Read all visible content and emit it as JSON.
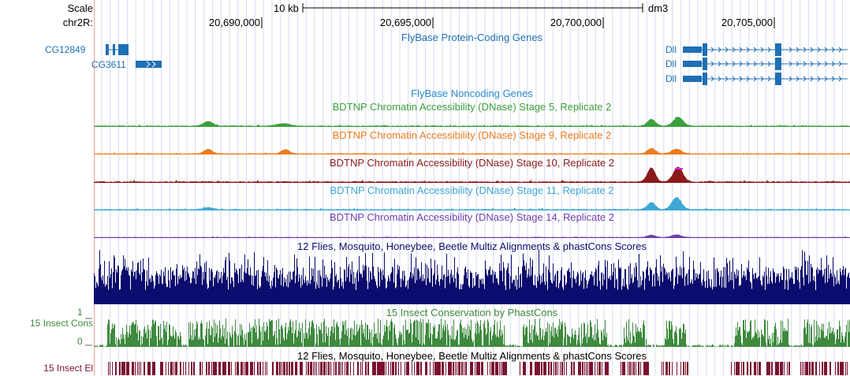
{
  "header": {
    "scale_label": "Scale",
    "scale_bar_label": "10 kb",
    "assembly": "dm3",
    "chrom_label": "chr2R:",
    "ticks": [
      "20,690,000",
      "20,695,000",
      "20,700,000",
      "20,705,000"
    ]
  },
  "tracks": {
    "protein_coding": {
      "title": "FlyBase Protein-Coding Genes",
      "color": "#1f6fb5",
      "genes": [
        {
          "name": "CG12849",
          "strand": "+"
        },
        {
          "name": "CG3611",
          "strand": "+"
        },
        {
          "name": "Dll",
          "strand": "+"
        },
        {
          "name": "Dll",
          "strand": "+"
        },
        {
          "name": "Dll",
          "strand": "+"
        }
      ]
    },
    "noncoding": {
      "title": "FlyBase Noncoding Genes",
      "color": "#2a8ad1"
    },
    "dnase": [
      {
        "title": "BDTNP Chromatin Accessibility (DNase) Stage 5, Replicate 2",
        "color": "#3ca03c"
      },
      {
        "title": "BDTNP Chromatin Accessibility (DNase) Stage 9, Replicate 2",
        "color": "#ee7b1e"
      },
      {
        "title": "BDTNP Chromatin Accessibility (DNase) Stage 10, Replicate 2",
        "color": "#8b1a1a"
      },
      {
        "title": "BDTNP Chromatin Accessibility (DNase) Stage 11, Replicate 2",
        "color": "#3fa7d6"
      },
      {
        "title": "BDTNP Chromatin Accessibility (DNase) Stage 14, Replicate 2",
        "color": "#6f3fad"
      }
    ],
    "multiz": {
      "title": "12 Flies, Mosquito, Honeybee, Beetle Multiz Alignments & phastCons Scores",
      "color": "#0c0c6e"
    },
    "insect_cons": {
      "title": "15 Insect Conservation by PhastCons",
      "side_label": "15 Insect Cons",
      "axis_max": "1",
      "axis_min": "0",
      "color": "#3e8a3e"
    },
    "insect_el": {
      "title": "12 Flies, Mosquito, Honeybee, Beetle Multiz Alignments & phastCons Scores",
      "side_label": "15 Insect El",
      "color": "#7a1230"
    }
  }
}
